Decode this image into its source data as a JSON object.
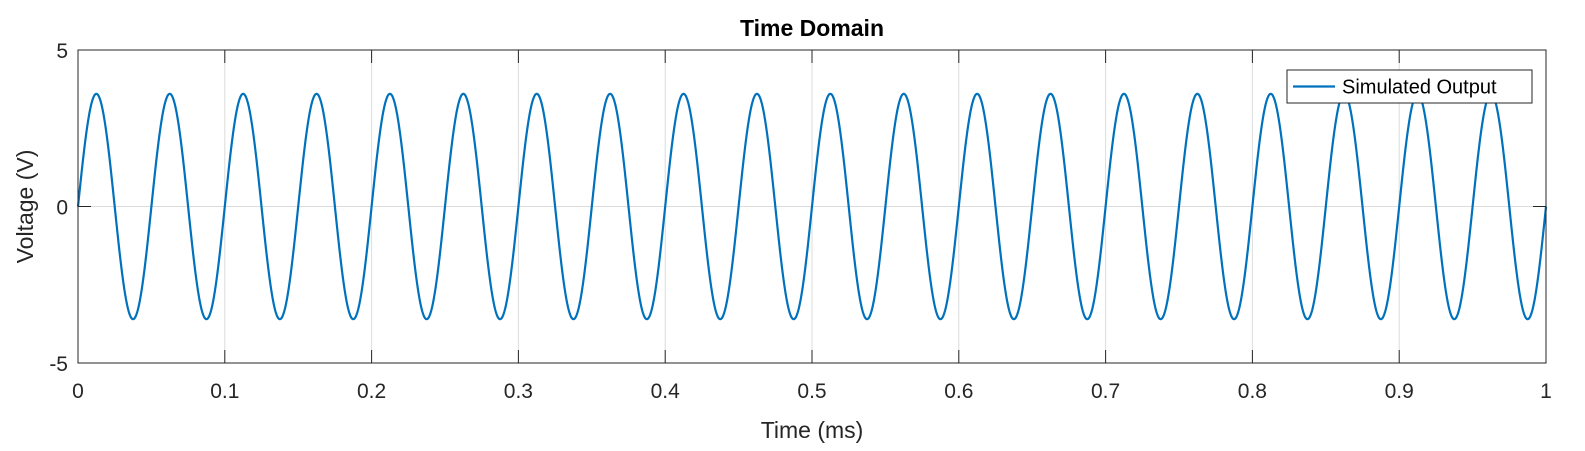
{
  "chart_data": {
    "type": "line",
    "title": "Time Domain",
    "xlabel": "Time (ms)",
    "ylabel": "Voltage (V)",
    "xlim": [
      0,
      1
    ],
    "ylim": [
      -5,
      5
    ],
    "x_ticks": [
      0,
      0.1,
      0.2,
      0.3,
      0.4,
      0.5,
      0.6,
      0.7,
      0.8,
      0.9,
      1
    ],
    "x_tick_labels": [
      "0",
      "0.1",
      "0.2",
      "0.3",
      "0.4",
      "0.5",
      "0.6",
      "0.7",
      "0.8",
      "0.9",
      "1"
    ],
    "y_ticks": [
      -5,
      0,
      5
    ],
    "y_tick_labels": [
      "-5",
      "0",
      "5"
    ],
    "grid": true,
    "legend_position": "top-right",
    "series": [
      {
        "name": "Simulated Output",
        "color": "#0072BD",
        "function": "sine",
        "amplitude_V": 3.6,
        "frequency_kHz": 20,
        "phase_rad": 0
      }
    ]
  }
}
